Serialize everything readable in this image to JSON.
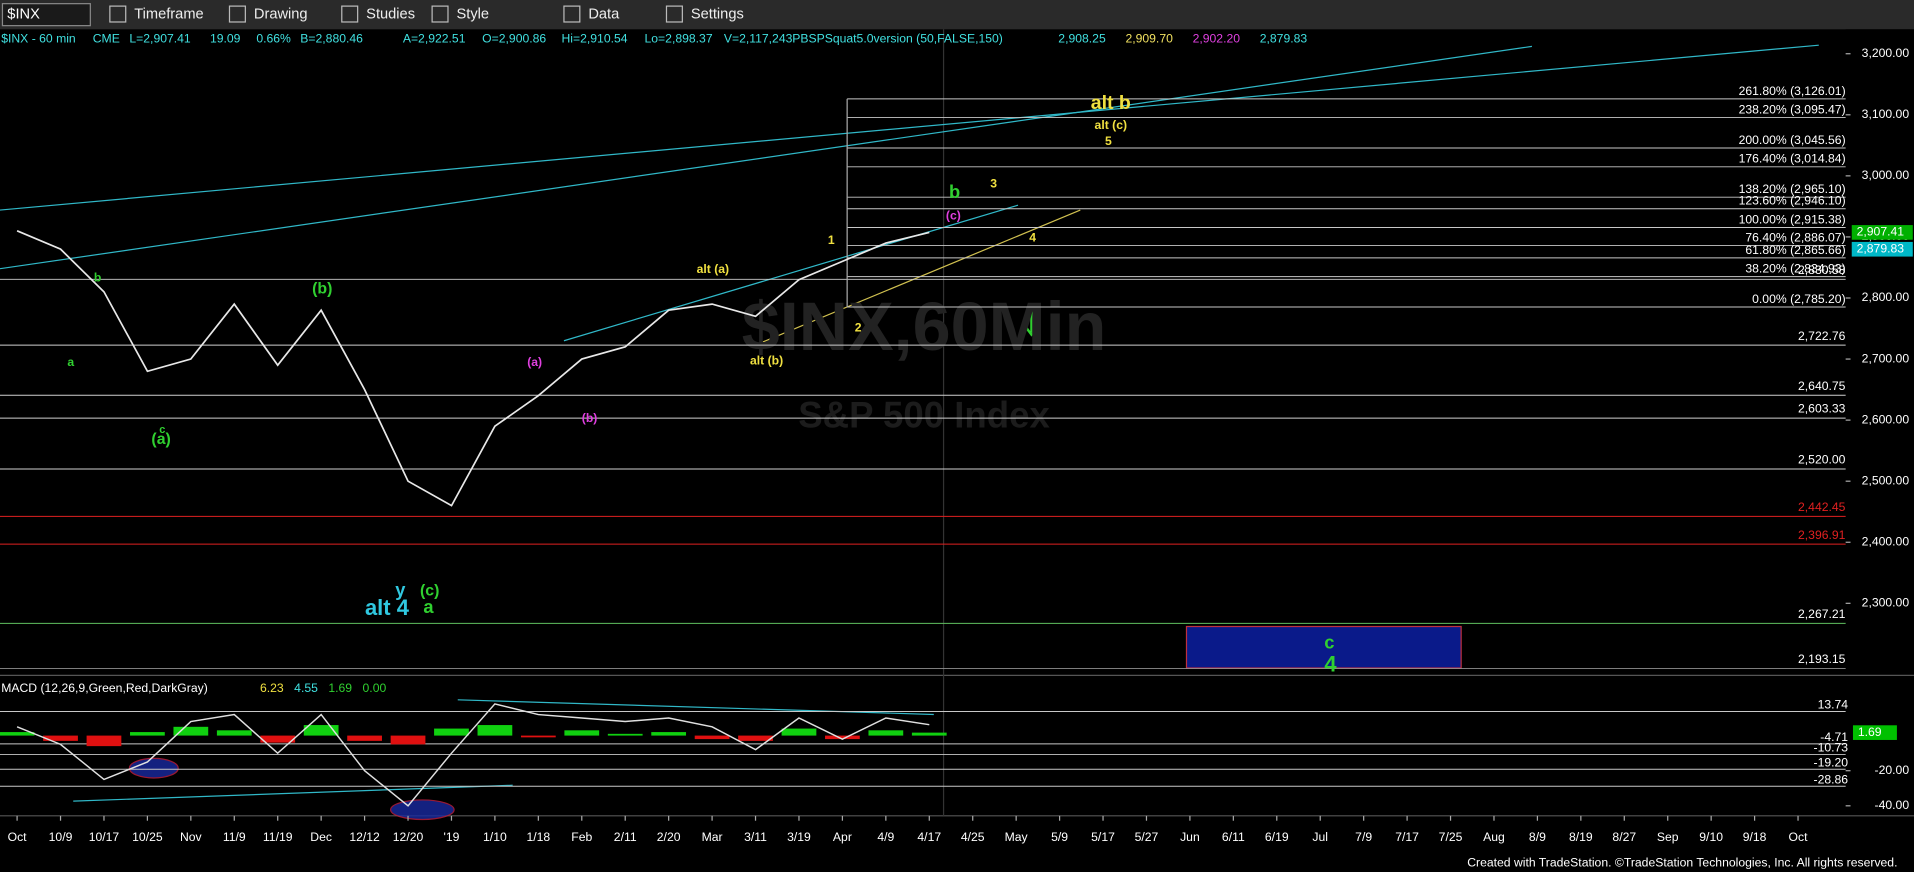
{
  "toolbar": {
    "symbol": "$INX",
    "buttons": [
      "Timeframe",
      "Drawing",
      "Studies",
      "Style",
      "Data",
      "Settings"
    ]
  },
  "header": {
    "symbol": "$INX - 60 min",
    "fields": [
      "CME",
      "L=2,907.41",
      "19.09",
      "0.66%",
      "B=2,880.46",
      "A=2,922.51",
      "O=2,900.86",
      "Hi=2,910.54",
      "Lo=2,898.37",
      "V=2,117,243",
      "PBSPSquat5.0version (50,FALSE,150)"
    ],
    "study_values": [
      {
        "text": "2,908.25",
        "color": "#40e0e0"
      },
      {
        "text": "2,909.70",
        "color": "#f0e060"
      },
      {
        "text": "2,902.20",
        "color": "#e040e0"
      },
      {
        "text": "2,879.83",
        "color": "#40e0e0"
      }
    ]
  },
  "chart_data": [
    {
      "type": "line",
      "categories": [
        "Oct",
        "10/9",
        "10/17",
        "10/25",
        "Nov",
        "11/9",
        "11/19",
        "Dec",
        "12/12",
        "12/20",
        "'19",
        "1/10",
        "1/18",
        "Feb",
        "2/11",
        "2/20",
        "Mar",
        "3/11",
        "3/19",
        "Apr",
        "4/9",
        "4/17",
        "4/25",
        "May",
        "5/9",
        "5/17",
        "5/27",
        "Jun",
        "6/11",
        "6/19",
        "Jul",
        "7/9",
        "7/17",
        "7/25",
        "Aug",
        "8/9",
        "8/19",
        "8/27",
        "Sep",
        "9/10",
        "9/18",
        "Oct"
      ],
      "series": [
        {
          "color": "#e8e8e8",
          "values": [
            2910,
            2880,
            2810,
            2680,
            2700,
            2790,
            2690,
            2780,
            2650,
            2500,
            2460,
            2590,
            2640,
            2700,
            2720,
            2780,
            2790,
            2770,
            2830,
            2860,
            2890,
            2907.41,
            null,
            null,
            null,
            null,
            null,
            null,
            null,
            null,
            null,
            null,
            null,
            null,
            null,
            null,
            null,
            null,
            null,
            null,
            null,
            null
          ]
        }
      ],
      "ylim": [
        2182,
        3240
      ],
      "yticks": [
        {
          "value": 2300,
          "label": "2,300.00"
        },
        {
          "value": 2400,
          "label": "2,400.00"
        },
        {
          "value": 2500,
          "label": "2,500.00"
        },
        {
          "value": 2600,
          "label": "2,600.00"
        },
        {
          "value": 2700,
          "label": "2,700.00"
        },
        {
          "value": 2800,
          "label": "2,800.00"
        },
        {
          "value": 2900,
          "label": "2,900.00"
        },
        {
          "value": 3000,
          "label": "3,000.00"
        },
        {
          "value": 3100,
          "label": "3,100.00"
        },
        {
          "value": 3200,
          "label": "3,200.00"
        }
      ],
      "grid": false,
      "levels": [
        {
          "value": 2830.58,
          "label": "2,830.58",
          "color": "#d0d0d0"
        },
        {
          "value": 2722.76,
          "label": "2,722.76",
          "color": "#d0d0d0"
        },
        {
          "value": 2640.75,
          "label": "2,640.75",
          "color": "#d0d0d0"
        },
        {
          "value": 2603.33,
          "label": "2,603.33",
          "color": "#d0d0d0"
        },
        {
          "value": 2520.0,
          "label": "2,520.00",
          "color": "#d0d0d0"
        },
        {
          "value": 2442.45,
          "label": "2,442.45",
          "color": "#e02020"
        },
        {
          "value": 2396.91,
          "label": "2,396.91",
          "color": "#e02020"
        },
        {
          "value": 2267.21,
          "label": "2,267.21",
          "color": "#60c060"
        },
        {
          "value": 2193.15,
          "label": "2,193.15",
          "color": "#909090"
        }
      ],
      "fib": [
        {
          "value": 3126.01,
          "label": "261.80% (3,126.01)"
        },
        {
          "value": 3095.47,
          "label": "238.20% (3,095.47)"
        },
        {
          "value": 3045.56,
          "label": "200.00% (3,045.56)"
        },
        {
          "value": 3014.84,
          "label": "176.40% (3,014.84)"
        },
        {
          "value": 2965.1,
          "label": "138.20% (2,965.10)"
        },
        {
          "value": 2946.1,
          "label": "123.60% (2,946.10)"
        },
        {
          "value": 2915.38,
          "label": "100.00% (2,915.38)"
        },
        {
          "value": 2886.07,
          "label": "76.40% (2,886.07)"
        },
        {
          "value": 2865.66,
          "label": "61.80% (2,865.66)"
        },
        {
          "value": 2834.93,
          "label": "38.20% (2,834.93)"
        },
        {
          "value": 2785.2,
          "label": "0.00% (2,785.20)"
        }
      ],
      "price_tags": [
        {
          "value": 2907.41,
          "label": "2,907.41",
          "color": "#00b000"
        },
        {
          "value": 2879.83,
          "label": "2,879.83",
          "color": "#00b8c8"
        }
      ]
    },
    {
      "type": "macd",
      "title": "MACD (12,26,9,Green,Red,DarkGray)",
      "header_values": [
        "6.23",
        "4.55",
        "1.69",
        "0.00"
      ],
      "values": [
        5,
        -5,
        -25,
        -15,
        8,
        12,
        -10,
        12,
        -20,
        -40,
        -10,
        18,
        12,
        10,
        8,
        10,
        5,
        -8,
        10,
        -2,
        10,
        6.23,
        null,
        null,
        null,
        null,
        null,
        null,
        null,
        null,
        null,
        null,
        null,
        null,
        null,
        null,
        null,
        null,
        null,
        null,
        null,
        null
      ],
      "diff": [
        2,
        -3,
        -6,
        2,
        5,
        3,
        -4,
        6,
        -3,
        -5,
        4,
        6,
        -1,
        3,
        1,
        2,
        -2,
        -3,
        4,
        -2,
        3,
        1.69,
        null,
        null,
        null,
        null,
        null,
        null,
        null,
        null,
        null,
        null,
        null,
        null,
        null,
        null,
        null,
        null,
        null,
        null,
        null,
        null
      ],
      "ylim": [
        -45.7,
        34.3
      ],
      "yticks": [
        {
          "value": -20,
          "label": "-20.00"
        },
        {
          "value": -40,
          "label": "-40.00"
        }
      ],
      "levels": [
        {
          "value": 13.74,
          "label": "13.74"
        },
        {
          "value": -4.71,
          "label": "-4.71"
        },
        {
          "value": -10.73,
          "label": "-10.73"
        },
        {
          "value": -19.2,
          "label": "-19.20"
        },
        {
          "value": -28.86,
          "label": "-28.86"
        }
      ],
      "price_tags": [
        {
          "value": 1.69,
          "label": "1.69",
          "color": "#00c000"
        }
      ]
    }
  ],
  "annotations": [
    {
      "text": "alt b",
      "color": "#f0e040"
    },
    {
      "text": "alt (c)",
      "color": "#f0e040"
    },
    {
      "text": "5",
      "color": "#f0e040"
    },
    {
      "text": "3",
      "color": "#f0e040"
    },
    {
      "text": "b",
      "color": "#30d030"
    },
    {
      "text": "(c)",
      "color": "#e040e0"
    },
    {
      "text": "4",
      "color": "#f0e040"
    },
    {
      "text": "1",
      "color": "#f0e040"
    },
    {
      "text": "alt (a)",
      "color": "#f0e040"
    },
    {
      "text": "2",
      "color": "#f0e040"
    },
    {
      "text": "alt (b)",
      "color": "#f0e040"
    },
    {
      "text": "(b)",
      "color": "#30d030"
    },
    {
      "text": "b",
      "color": "#30d030"
    },
    {
      "text": "a",
      "color": "#30d030"
    },
    {
      "text": "c",
      "color": "#30d030"
    },
    {
      "text": "(a)",
      "color": "#30d030"
    },
    {
      "text": "(a)",
      "color": "#e040e0"
    },
    {
      "text": "(b)",
      "color": "#e040e0"
    },
    {
      "text": "y",
      "color": "#30c8e0"
    },
    {
      "text": "alt 4",
      "color": "#30c8e0"
    },
    {
      "text": "(c)",
      "color": "#30d030"
    },
    {
      "text": "a",
      "color": "#30d030"
    },
    {
      "text": "c",
      "color": "#30d030"
    },
    {
      "text": "4",
      "color": "#30d030"
    }
  ],
  "watermark": [
    "$INX,60Min",
    "S&P 500 Index"
  ],
  "footer": "Created with TradeStation. ©TradeStation Technologies, Inc. All rights reserved."
}
